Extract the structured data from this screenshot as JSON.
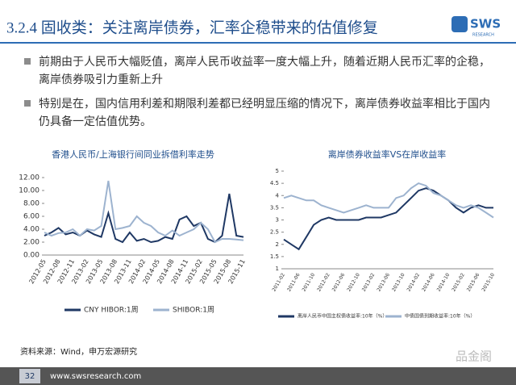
{
  "header": {
    "title": "3.2.4 固收类：关注离岸债券，汇率企稳带来的估值修复",
    "logo": "SWS",
    "logo_sub": "RESEARCH"
  },
  "bullets": [
    "前期由于人民币大幅贬值，离岸人民币收益率一度大幅上升，随着近期人民币汇率的企稳，离岸债券吸引力重新上升",
    "特别是在，国内信用利差和期限利差都已经明显压缩的情况下，离岸债券收益率相比于国内仍具备一定估值优势。"
  ],
  "source": "资料来源：Wind，申万宏源研究",
  "footer": {
    "page": "32",
    "url": "www.swsresearch.com",
    "watermark": "品金阁"
  },
  "chart_data": [
    {
      "type": "line",
      "title": "香港人民币/上海银行间同业拆借利率走势",
      "categories": [
        "2012-05",
        null,
        "2012-08",
        null,
        "2012-11",
        null,
        "2013-02",
        null,
        "2013-05",
        null,
        "2013-08",
        null,
        "2013-11",
        null,
        "2014-02",
        null,
        "2014-05",
        null,
        "2014-08",
        null,
        "2014-11",
        null,
        "2015-02",
        null,
        "2015-05",
        null,
        "2015-08",
        null,
        "2015-11"
      ],
      "series": [
        {
          "name": "CNY HIBOR:1周",
          "color": "#1f3864",
          "values": [
            3.0,
            3.5,
            4.2,
            3.2,
            3.5,
            3.0,
            3.8,
            3.2,
            2.8,
            6.5,
            2.5,
            2.0,
            3.5,
            2.2,
            2.5,
            2.0,
            2.2,
            2.8,
            2.5,
            5.5,
            6.0,
            4.5,
            5.0,
            2.5,
            2.0,
            3.0,
            9.5,
            3.0,
            2.8
          ]
        },
        {
          "name": "SHIBOR:1周",
          "color": "#9db3cf",
          "values": [
            3.5,
            3.0,
            3.4,
            3.5,
            4.0,
            3.0,
            4.0,
            3.8,
            4.5,
            11.5,
            4.0,
            4.2,
            4.5,
            6.0,
            5.0,
            4.5,
            3.5,
            3.0,
            3.8,
            3.0,
            3.5,
            4.0,
            5.0,
            4.0,
            2.0,
            2.5,
            2.5,
            2.4,
            2.3
          ]
        }
      ],
      "ylim": [
        0,
        12
      ],
      "yticks": [
        {
          "value": 0,
          "label": "0.00"
        },
        {
          "value": 2,
          "label": "2.00"
        },
        {
          "value": 4,
          "label": "4.00"
        },
        {
          "value": 6,
          "label": "6.00"
        },
        {
          "value": 8,
          "label": "8.00"
        },
        {
          "value": 10,
          "label": "10.00"
        },
        {
          "value": 12,
          "label": "12.00"
        }
      ]
    },
    {
      "type": "line",
      "title": "离岸债券收益率VS在岸收益率",
      "categories": [
        "2011-02",
        null,
        "2011-06",
        null,
        "2011-10",
        null,
        "2012-02",
        null,
        "2012-06",
        null,
        "2012-10",
        null,
        "2013-02",
        null,
        "2013-06",
        null,
        "2013-10",
        null,
        "2014-02",
        null,
        "2014-06",
        null,
        "2014-10",
        null,
        "2015-02",
        null,
        "2015-06",
        null,
        "2015-10"
      ],
      "series": [
        {
          "name": "离岸人民币中国主权债收益率:10年（%）",
          "color": "#1f3864",
          "values": [
            2.2,
            2.0,
            1.8,
            2.3,
            2.8,
            3.0,
            3.1,
            3.0,
            3.0,
            3.0,
            3.0,
            3.1,
            3.1,
            3.1,
            3.2,
            3.3,
            3.6,
            3.9,
            4.2,
            4.3,
            4.2,
            4.0,
            3.8,
            3.5,
            3.3,
            3.5,
            3.6,
            3.5,
            3.5
          ]
        },
        {
          "name": "中债国债到期收益率:10年（%）",
          "color": "#9db3cf",
          "values": [
            3.9,
            4.0,
            3.9,
            3.8,
            3.8,
            3.6,
            3.5,
            3.4,
            3.3,
            3.4,
            3.5,
            3.6,
            3.5,
            3.5,
            3.5,
            3.9,
            4.0,
            4.3,
            4.5,
            4.4,
            4.1,
            4.0,
            3.8,
            3.6,
            3.5,
            3.6,
            3.5,
            3.3,
            3.1
          ]
        }
      ],
      "ylim": [
        1,
        5
      ],
      "yticks": [
        1,
        1.5,
        2,
        2.5,
        3,
        3.5,
        4,
        4.5,
        5
      ]
    }
  ]
}
